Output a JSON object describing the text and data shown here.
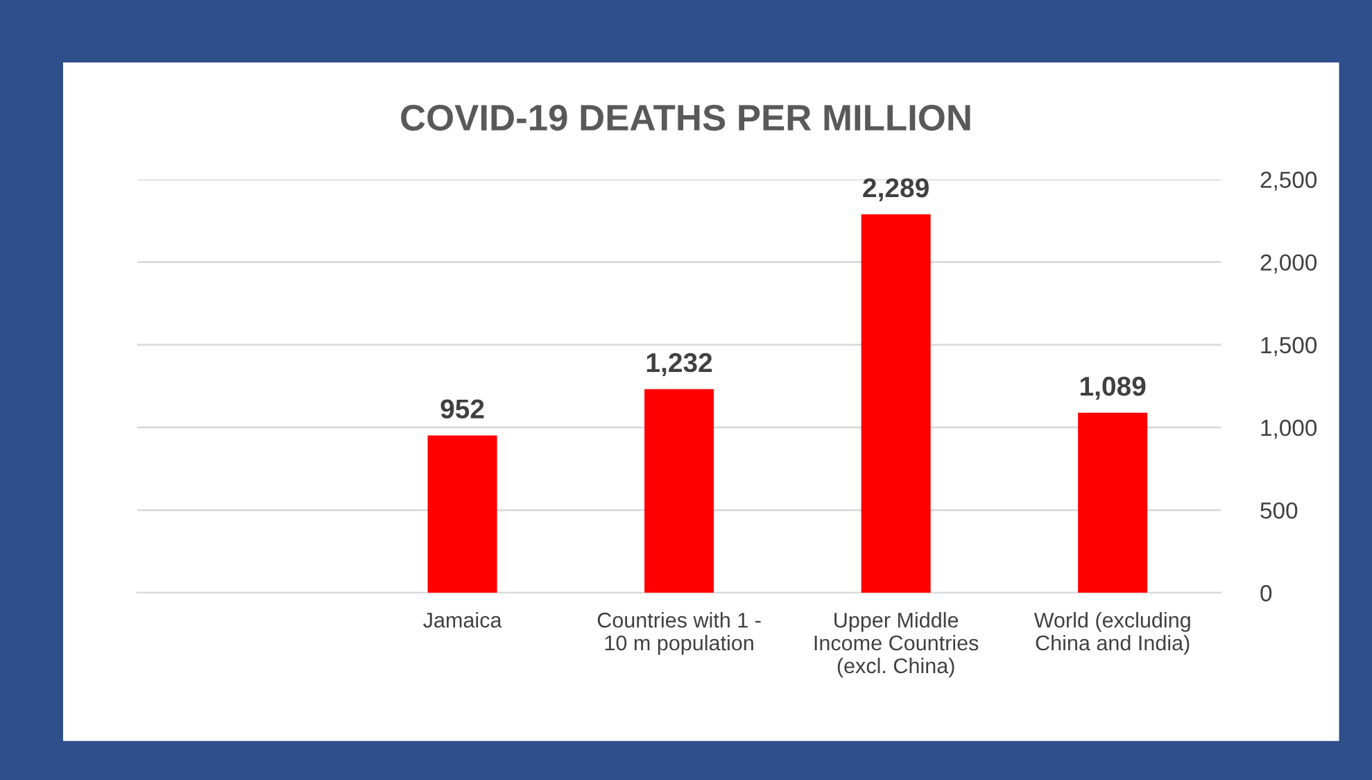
{
  "chart_data": {
    "type": "bar",
    "title": "COVID-19 DEATHS PER MILLION",
    "categories": [
      null,
      "Jamaica",
      "Countries with 1 - 10 m population",
      "Upper Middle Income Countries (excl. China)",
      "World (excluding China and India)"
    ],
    "values": [
      null,
      952,
      1232,
      2289,
      1089
    ],
    "value_labels": [
      null,
      "952",
      "1,232",
      "2,289",
      "1,089"
    ],
    "color": "#ff0000",
    "ylim": [
      0,
      2500
    ],
    "yticks": [
      0,
      500,
      {
        "value": 1000,
        "label": "1,000"
      },
      {
        "value": 1500,
        "label": "1,500"
      },
      {
        "value": 2000,
        "label": "2,000"
      },
      {
        "value": 2500,
        "label": "2,500"
      }
    ],
    "grid": "y"
  }
}
